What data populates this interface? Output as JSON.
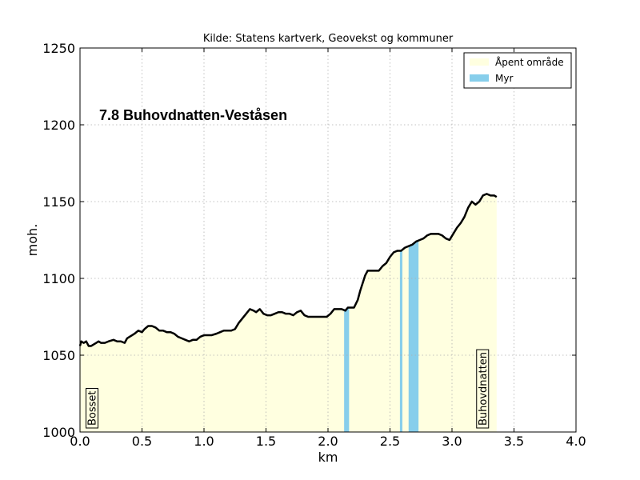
{
  "chart_data": {
    "type": "area",
    "title": "Kilde: Statens kartverk, Geovekst og kommuner",
    "inset_title": "7.8 Buhovdnatten-Veståsen",
    "xlabel": "km",
    "ylabel": "moh.",
    "xlim": [
      0,
      4.0
    ],
    "ylim": [
      1000,
      1250
    ],
    "x_ticks": [
      "0.0",
      "0.5",
      "1.0",
      "1.5",
      "2.0",
      "2.5",
      "3.0",
      "3.5",
      "4.0"
    ],
    "y_ticks": [
      "1000",
      "1050",
      "1100",
      "1150",
      "1200",
      "1250"
    ],
    "grid": true,
    "legend_position": "top-right",
    "legend": [
      {
        "label": "Åpent område",
        "color": "#ffffe0"
      },
      {
        "label": "Myr",
        "color": "#87ceeb"
      }
    ],
    "start_label": "Bosset",
    "end_label": "Buhovdnatten",
    "series": [
      {
        "x": [
          0.0,
          0.01,
          0.03,
          0.05,
          0.07,
          0.09,
          0.11,
          0.13,
          0.15,
          0.17,
          0.2,
          0.23,
          0.27,
          0.3,
          0.33,
          0.36,
          0.38,
          0.4,
          0.42,
          0.44,
          0.47,
          0.5,
          0.52,
          0.55,
          0.58,
          0.61,
          0.64,
          0.67,
          0.7,
          0.73,
          0.76,
          0.79,
          0.82,
          0.85,
          0.88,
          0.91,
          0.94,
          0.97,
          1.0,
          1.03,
          1.06,
          1.1,
          1.13,
          1.16,
          1.19,
          1.22,
          1.25,
          1.28,
          1.31,
          1.34,
          1.37,
          1.4,
          1.42,
          1.45,
          1.48,
          1.51,
          1.54,
          1.57,
          1.6,
          1.63,
          1.66,
          1.69,
          1.72,
          1.75,
          1.78,
          1.81,
          1.84,
          1.87,
          1.9,
          1.93,
          1.96,
          1.99,
          2.02,
          2.05,
          2.08,
          2.11,
          2.14,
          2.16,
          2.18,
          2.21,
          2.24,
          2.26,
          2.28,
          2.3,
          2.32,
          2.35,
          2.38,
          2.41,
          2.44,
          2.47,
          2.5,
          2.53,
          2.56,
          2.59,
          2.62,
          2.65,
          2.68,
          2.71,
          2.74,
          2.77,
          2.8,
          2.83,
          2.86,
          2.89,
          2.92,
          2.95,
          2.98,
          3.01,
          3.04,
          3.07,
          3.1,
          3.13,
          3.16,
          3.19,
          3.22,
          3.25,
          3.28,
          3.31,
          3.34,
          3.36
        ],
        "y": [
          1056,
          1059,
          1058,
          1059,
          1056,
          1056,
          1057,
          1058,
          1059,
          1058,
          1058,
          1059,
          1060,
          1059,
          1059,
          1058,
          1061,
          1062,
          1063,
          1064,
          1066,
          1065,
          1067,
          1069,
          1069,
          1068,
          1066,
          1066,
          1065,
          1065,
          1064,
          1062,
          1061,
          1060,
          1059,
          1060,
          1060,
          1062,
          1063,
          1063,
          1063,
          1064,
          1065,
          1066,
          1066,
          1066,
          1067,
          1071,
          1074,
          1077,
          1080,
          1079,
          1078,
          1080,
          1077,
          1076,
          1076,
          1077,
          1078,
          1078,
          1077,
          1077,
          1076,
          1078,
          1079,
          1076,
          1075,
          1075,
          1075,
          1075,
          1075,
          1075,
          1077,
          1080,
          1080,
          1080,
          1079,
          1081,
          1081,
          1081,
          1086,
          1092,
          1097,
          1102,
          1105,
          1105,
          1105,
          1105,
          1108,
          1110,
          1114,
          1117,
          1118,
          1118,
          1120,
          1121,
          1122,
          1124,
          1125,
          1126,
          1128,
          1129,
          1129,
          1129,
          1128,
          1126,
          1125,
          1129,
          1133,
          1136,
          1140,
          1146,
          1150,
          1148,
          1150,
          1154,
          1155,
          1154,
          1154,
          1153
        ]
      }
    ],
    "myr_segments": [
      [
        2.13,
        2.17
      ],
      [
        2.58,
        2.6
      ],
      [
        2.65,
        2.73
      ]
    ]
  }
}
